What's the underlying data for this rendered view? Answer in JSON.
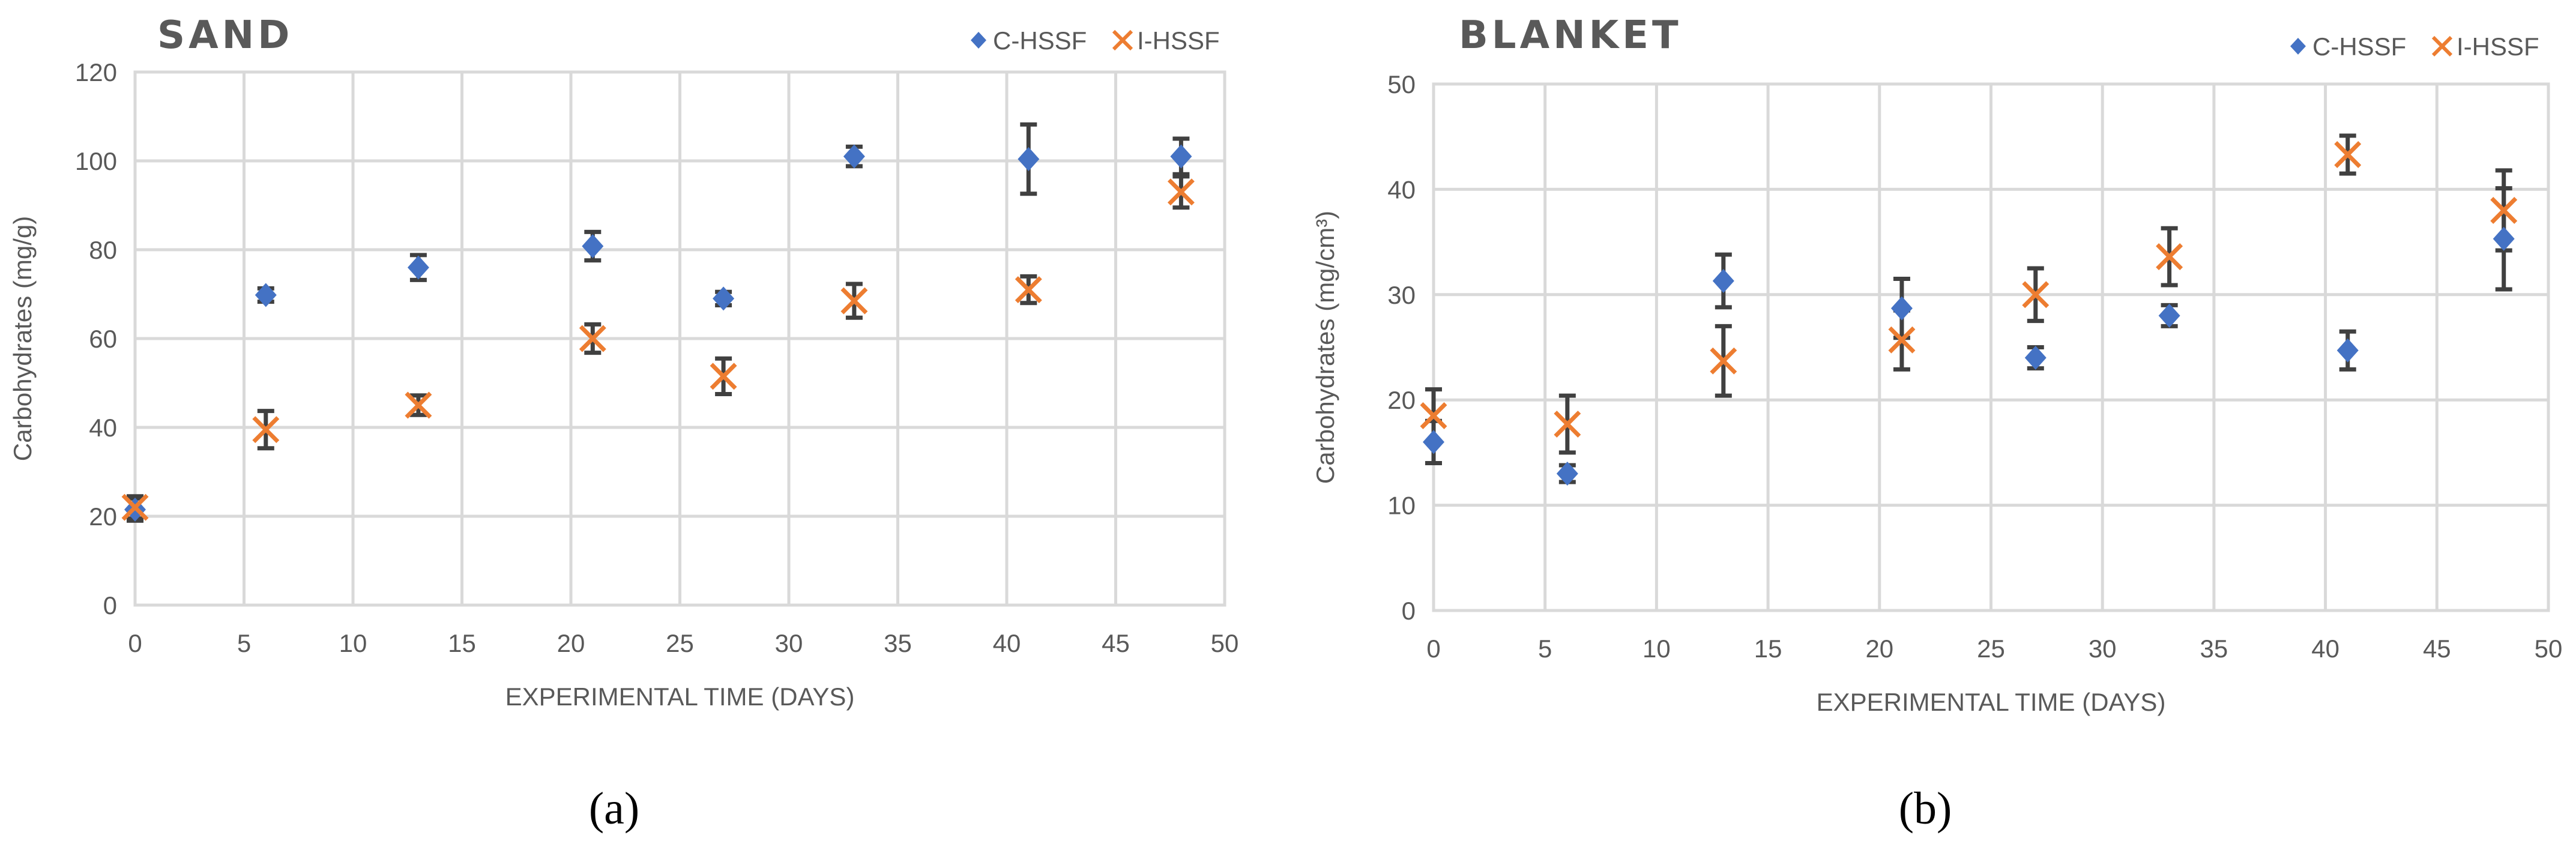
{
  "colors": {
    "c_hssf": "#4472c4",
    "i_hssf": "#ed7d31",
    "error_bar": "#404040",
    "grid": "#d9d9d9"
  },
  "chart_data": [
    {
      "type": "scatter",
      "panel_label": "(a)",
      "title": "SAND",
      "xlabel": "EXPERIMENTAL TIME (DAYS)",
      "ylabel": "Carbohydrates (mg/g)",
      "xlim": [
        0,
        50
      ],
      "ylim": [
        0,
        120
      ],
      "xticks": [
        0,
        5,
        10,
        15,
        20,
        25,
        30,
        35,
        40,
        45,
        50
      ],
      "yticks": [
        0,
        20,
        40,
        60,
        80,
        100,
        120
      ],
      "grid": true,
      "legend_position": "top-right",
      "series": [
        {
          "name": "C-HSSF",
          "marker": "diamond",
          "x": [
            0,
            6,
            13,
            21,
            27,
            33,
            41,
            48
          ],
          "y": [
            21.5,
            69.8,
            76,
            80.8,
            69,
            101,
            100.4,
            101
          ],
          "err": [
            2.5,
            1.5,
            2.8,
            3.2,
            1.5,
            2.2,
            7.8,
            4
          ]
        },
        {
          "name": "I-HSSF",
          "marker": "x",
          "x": [
            0,
            6,
            13,
            21,
            27,
            33,
            41,
            48
          ],
          "y": [
            22,
            39.5,
            45,
            60,
            51.5,
            68.5,
            71,
            93
          ],
          "err": [
            2.5,
            4.2,
            2.2,
            3.2,
            4,
            3.8,
            3,
            3.5
          ]
        }
      ]
    },
    {
      "type": "scatter",
      "panel_label": "(b)",
      "title": "BLANKET",
      "xlabel": "EXPERIMENTAL TIME (DAYS)",
      "ylabel": "Carbohydrates (mg/cm³)",
      "xlim": [
        0,
        50
      ],
      "ylim": [
        0,
        50
      ],
      "xticks": [
        0,
        5,
        10,
        15,
        20,
        25,
        30,
        35,
        40,
        45,
        50
      ],
      "yticks": [
        0,
        10,
        20,
        30,
        40,
        50
      ],
      "grid": true,
      "legend_position": "top-right",
      "series": [
        {
          "name": "C-HSSF",
          "marker": "diamond",
          "x": [
            0,
            6,
            13,
            21,
            27,
            33,
            41,
            48
          ],
          "y": [
            16,
            13,
            31.3,
            28.7,
            24,
            28,
            24.7,
            35.3
          ],
          "err": [
            2,
            0.8,
            2.5,
            2.8,
            1,
            1,
            1.8,
            4.8
          ]
        },
        {
          "name": "I-HSSF",
          "marker": "x",
          "x": [
            0,
            6,
            13,
            21,
            27,
            33,
            41,
            48
          ],
          "y": [
            18.5,
            17.7,
            23.7,
            25.7,
            30,
            33.6,
            43.3,
            38
          ],
          "err": [
            2.5,
            2.7,
            3.3,
            2.8,
            2.5,
            2.7,
            1.8,
            3.8
          ]
        }
      ]
    }
  ]
}
